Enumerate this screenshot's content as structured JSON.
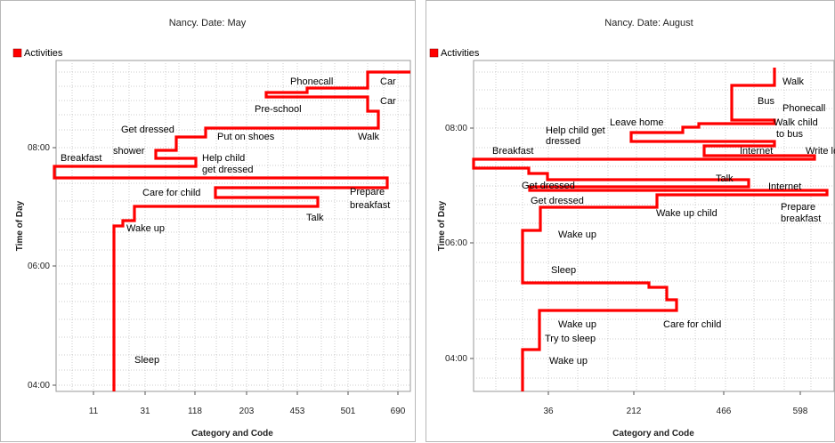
{
  "chart_data": [
    {
      "type": "line",
      "title": "Nancy. Date: May",
      "legend": {
        "label": "Activities",
        "color": "#ff0000",
        "placement": "top-left"
      },
      "xlabel": "Category and Code",
      "ylabel": "Time of Day",
      "x_tick_labels": [
        "11",
        "31",
        "118",
        "203",
        "453",
        "501",
        "690"
      ],
      "y_tick_labels": [
        "04:00",
        "06:00",
        "08:00"
      ],
      "grid": true,
      "series": [
        {
          "points": [
            {
              "x": 16.5,
              "y": 3.96
            },
            {
              "x": 16.5,
              "y": 6.66
            },
            {
              "x": 20.5,
              "y": 6.66
            },
            {
              "x": 20.5,
              "y": 6.7
            },
            {
              "x": 24,
              "y": 6.7
            },
            {
              "x": 24,
              "y": 6.98
            },
            {
              "x": 0,
              "y": 6.98
            },
            {
              "x": 0,
              "y": 6.98
            },
            {
              "x": 0,
              "y": 6.98
            }
          ]
        }
      ],
      "annotations": [
        {
          "text": "Phonecall",
          "x": 4.6,
          "y": 8.95
        },
        {
          "text": "Car",
          "x": 6.5,
          "y": 8.95
        },
        {
          "text": "Car",
          "x": 6.5,
          "y": 8.55
        },
        {
          "text": "Pre-school",
          "x": 3.95,
          "y": 8.47
        },
        {
          "text": "Get dressed",
          "x": 1.55,
          "y": 8.25
        },
        {
          "text": "Put on shoes",
          "x": 2.95,
          "y": 8.12
        },
        {
          "text": "Walk",
          "x": 5.85,
          "y": 8.12
        },
        {
          "text": "shower",
          "x": 1.2,
          "y": 7.95
        },
        {
          "text": "Help child",
          "x": 2.7,
          "y": 7.9
        },
        {
          "text": "get dressed",
          "x": 2.7,
          "y": 7.75
        },
        {
          "text": "Breakfast",
          "x": -0.65,
          "y": 7.85
        },
        {
          "text": "Care for child",
          "x": 1.55,
          "y": 7.26
        },
        {
          "text": "Prepare",
          "x": 6.95,
          "y": 7.23
        },
        {
          "text": "breakfast",
          "x": 6.9,
          "y": 7.06
        },
        {
          "text": "Talk",
          "x": 4.8,
          "y": 6.85
        },
        {
          "text": "Wake up",
          "x": 0.45,
          "y": 6.62
        },
        {
          "text": "Sleep",
          "x": 0.45,
          "y": 4.25
        }
      ]
    },
    {
      "type": "line",
      "title": "Nancy. Date: August",
      "legend": {
        "label": "Activities",
        "color": "#ff0000",
        "placement": "top-left"
      },
      "xlabel": "Category and Code",
      "ylabel": "Time of Day",
      "x_tick_labels": [
        "36",
        "212",
        "466",
        "598"
      ],
      "y_tick_labels": [
        "04:00",
        "06:00",
        "08:00"
      ],
      "grid": true,
      "annotations": [
        {
          "text": "Walk",
          "x": 3.95,
          "y": 8.82
        },
        {
          "text": "Bus",
          "x": 3.05,
          "y": 8.48
        },
        {
          "text": "Phonecall",
          "x": 3.95,
          "y": 8.35
        },
        {
          "text": "Leave home",
          "x": 1.35,
          "y": 8.12
        },
        {
          "text": "Walk child",
          "x": 3.9,
          "y": 8.12
        },
        {
          "text": "to bus",
          "x": 3.95,
          "y": 7.92
        },
        {
          "text": "Help child get",
          "x": 0.1,
          "y": 7.98
        },
        {
          "text": "dressed",
          "x": 0.1,
          "y": 7.8
        },
        {
          "text": "Breakfast",
          "x": -1.0,
          "y": 7.6
        },
        {
          "text": "Internet",
          "x": 2.95,
          "y": 7.6
        },
        {
          "text": "Write letter",
          "x": 4.75,
          "y": 7.6
        },
        {
          "text": "Talk",
          "x": 2.65,
          "y": 7.2
        },
        {
          "text": "Get dressed",
          "x": -0.45,
          "y": 7.07
        },
        {
          "text": "Internet",
          "x": 4.2,
          "y": 7.07
        },
        {
          "text": "Get dressed",
          "x": 0.02,
          "y": 6.82
        },
        {
          "text": "Prepare",
          "x": 4.9,
          "y": 6.72
        },
        {
          "text": "breakfast",
          "x": 4.9,
          "y": 6.55
        },
        {
          "text": "Wake up child",
          "x": 1.75,
          "y": 6.56
        },
        {
          "text": "Wake up",
          "x": 0.3,
          "y": 6.15
        },
        {
          "text": "Sleep",
          "x": 0.3,
          "y": 5.46
        },
        {
          "text": "Care for child",
          "x": 2.0,
          "y": 4.74
        },
        {
          "text": "Wake up",
          "x": 0.3,
          "y": 4.74
        },
        {
          "text": "Try to sleep",
          "x": 0.12,
          "y": 4.5
        },
        {
          "text": "Wake up",
          "x": 0.3,
          "y": 3.98
        }
      ]
    }
  ]
}
